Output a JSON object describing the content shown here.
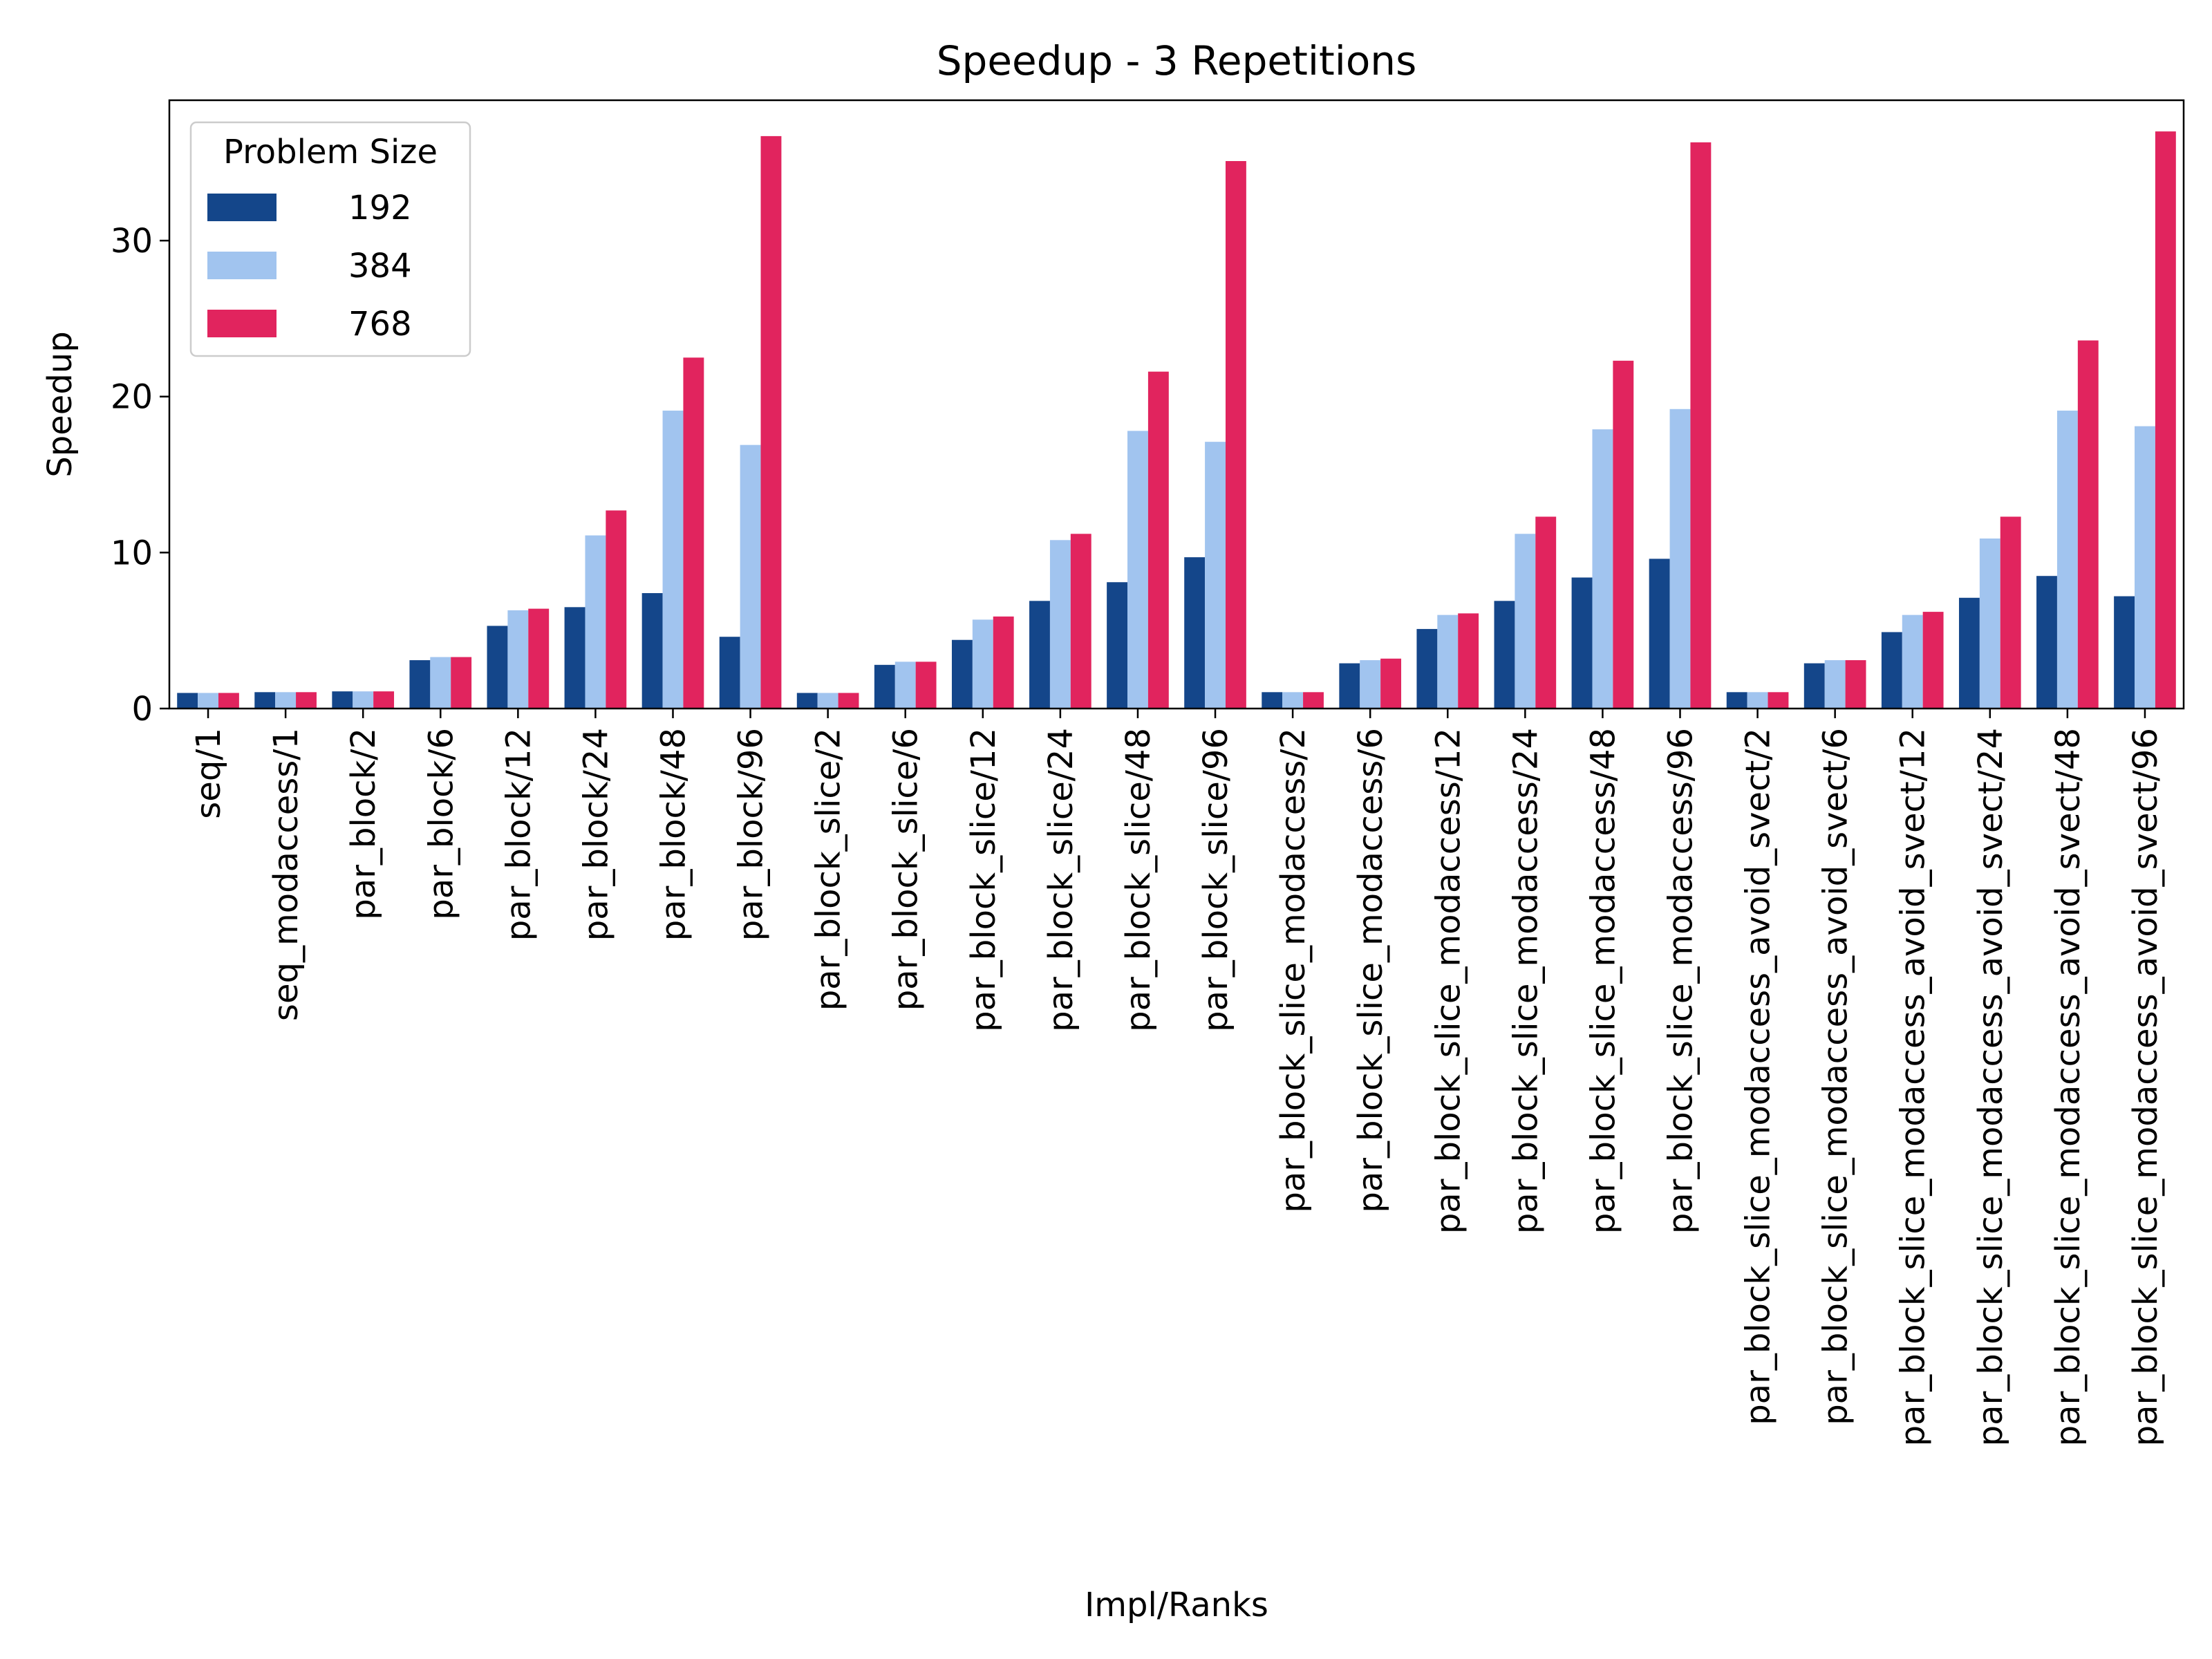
{
  "chart_data": {
    "type": "bar",
    "title": "Speedup - 3 Repetitions",
    "xlabel": "Impl/Ranks",
    "ylabel": "Speedup",
    "ylim": [
      0,
      39
    ],
    "yticks": [
      0,
      10,
      20,
      30
    ],
    "grid": false,
    "legend_placement": "top-left",
    "legend_title": "Problem Size",
    "categories": [
      "seq/1",
      "seq_modaccess/1",
      "par_block/2",
      "par_block/6",
      "par_block/12",
      "par_block/24",
      "par_block/48",
      "par_block/96",
      "par_block_slice/2",
      "par_block_slice/6",
      "par_block_slice/12",
      "par_block_slice/24",
      "par_block_slice/48",
      "par_block_slice/96",
      "par_block_slice_modaccess/2",
      "par_block_slice_modaccess/6",
      "par_block_slice_modaccess/12",
      "par_block_slice_modaccess/24",
      "par_block_slice_modaccess/48",
      "par_block_slice_modaccess/96",
      "par_block_slice_modaccess_avoid_svect/2",
      "par_block_slice_modaccess_avoid_svect/6",
      "par_block_slice_modaccess_avoid_svect/12",
      "par_block_slice_modaccess_avoid_svect/24",
      "par_block_slice_modaccess_avoid_svect/48",
      "par_block_slice_modaccess_avoid_svect/96"
    ],
    "series": [
      {
        "name": "192",
        "color": "#14468a",
        "values": [
          1.0,
          1.05,
          1.1,
          3.1,
          5.3,
          6.5,
          7.4,
          4.6,
          1.0,
          2.8,
          4.4,
          6.9,
          8.1,
          9.7,
          1.05,
          2.9,
          5.1,
          6.9,
          8.4,
          9.6,
          1.05,
          2.9,
          4.9,
          7.1,
          8.5,
          7.2
        ]
      },
      {
        "name": "384",
        "color": "#a1c4ef",
        "values": [
          1.0,
          1.05,
          1.1,
          3.3,
          6.3,
          11.1,
          19.1,
          16.9,
          1.0,
          3.0,
          5.7,
          10.8,
          17.8,
          17.1,
          1.05,
          3.1,
          6.0,
          11.2,
          17.9,
          19.2,
          1.05,
          3.1,
          6.0,
          10.9,
          19.1,
          18.1
        ]
      },
      {
        "name": "768",
        "color": "#e1245e",
        "values": [
          1.0,
          1.05,
          1.1,
          3.3,
          6.4,
          12.7,
          22.5,
          36.7,
          1.0,
          3.0,
          5.9,
          11.2,
          21.6,
          35.1,
          1.05,
          3.2,
          6.1,
          12.3,
          22.3,
          36.3,
          1.05,
          3.1,
          6.2,
          12.3,
          23.6,
          37.0
        ]
      }
    ]
  }
}
